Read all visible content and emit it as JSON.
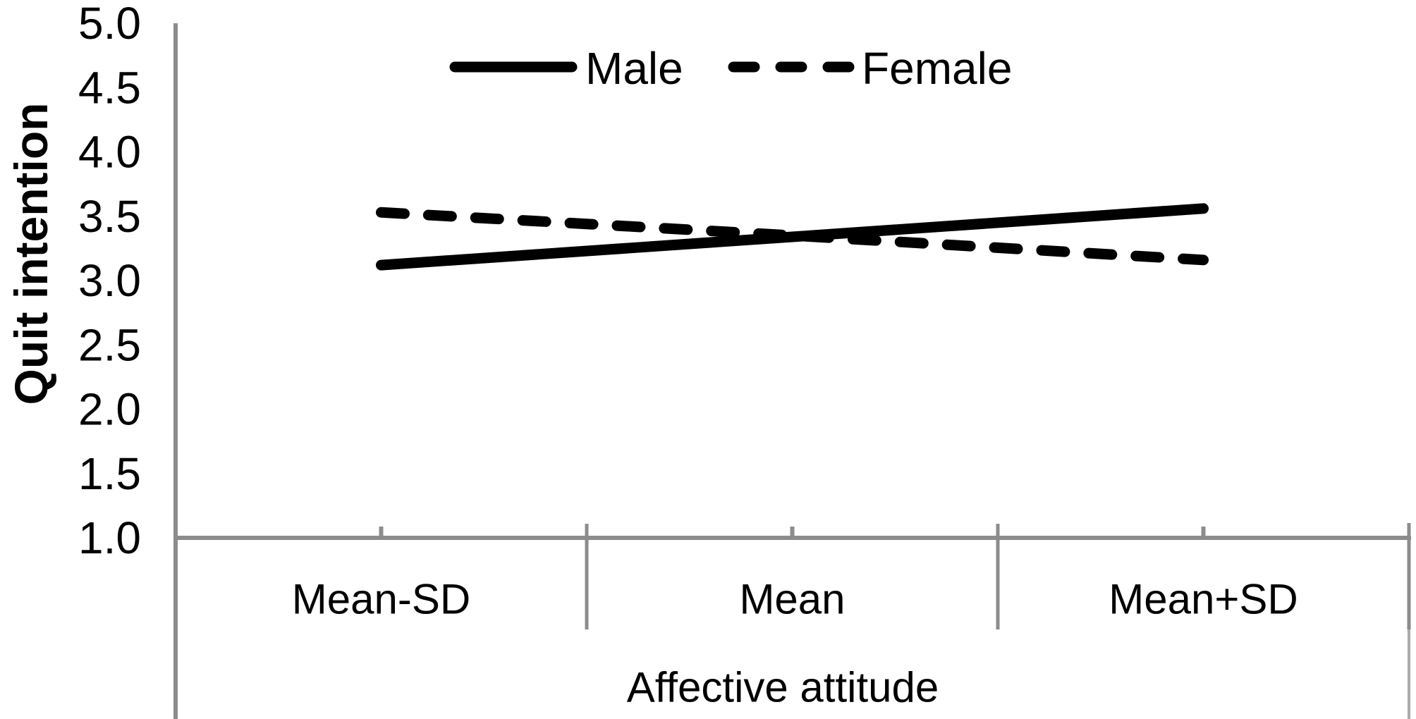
{
  "chart_data": {
    "type": "line",
    "title": "",
    "xlabel": "Affective attitude",
    "ylabel": "Quit intention",
    "categories": [
      "Mean-SD",
      "Mean",
      "Mean+SD"
    ],
    "series": [
      {
        "name": "Male",
        "line_style": "solid",
        "values": [
          3.12,
          3.34,
          3.56
        ]
      },
      {
        "name": "Female",
        "line_style": "dashed",
        "values": [
          3.53,
          3.35,
          3.16
        ]
      }
    ],
    "ylim": [
      1.0,
      5.0
    ],
    "ytick_step": 0.5,
    "ytick_labels": [
      "5.0",
      "4.5",
      "4.0",
      "3.5",
      "3.0",
      "2.5",
      "2.0",
      "1.5",
      "1.0"
    ],
    "legend": {
      "position": "top-center",
      "entries": [
        "Male",
        "Female"
      ]
    },
    "grid": false,
    "colors": {
      "line": "#000000",
      "axis": "#8c8c8c",
      "axis_light": "#ababab",
      "text": "#000000",
      "background": "#ffffff"
    }
  }
}
